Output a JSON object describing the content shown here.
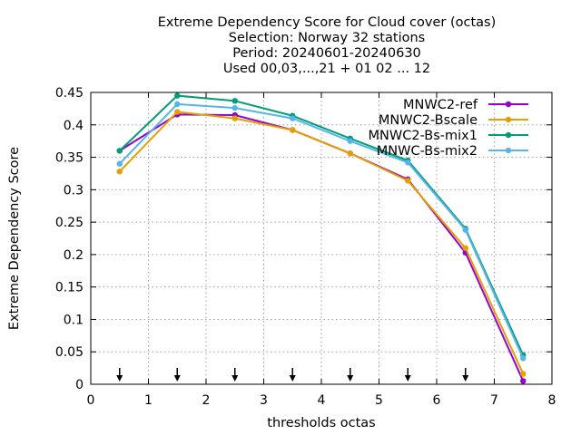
{
  "chart_data": {
    "type": "line",
    "title_lines": [
      "Extreme Dependency Score  for Cloud cover (octas)",
      "Selection: Norway     32 stations",
      "Period: 20240601-20240630",
      "Used 00,03,...,21 + 01 02 ... 12"
    ],
    "xlabel": "thresholds octas",
    "ylabel": "Extreme Dependency Score",
    "xlim": [
      0,
      8
    ],
    "ylim": [
      0,
      0.45
    ],
    "xticks": [
      0,
      1,
      2,
      3,
      4,
      5,
      6,
      7,
      8
    ],
    "xtick_labels": [
      "0",
      "1",
      "2",
      "3",
      "4",
      "5",
      "6",
      "7",
      "8"
    ],
    "yticks": [
      0,
      0.05,
      0.1,
      0.15,
      0.2,
      0.25,
      0.3,
      0.35,
      0.4,
      0.45
    ],
    "ytick_labels": [
      "0",
      "0.05",
      "0.1",
      "0.15",
      "0.2",
      "0.25",
      "0.3",
      "0.35",
      "0.4",
      "0.45"
    ],
    "grid": true,
    "legend_position": "top-right",
    "x": [
      0.5,
      1.5,
      2.5,
      3.5,
      4.5,
      5.5,
      6.5,
      7.5
    ],
    "series": [
      {
        "name": "MNWC2-ref",
        "color": "#9400d3",
        "values": [
          0.36,
          0.416,
          0.415,
          0.392,
          0.356,
          0.316,
          0.203,
          0.005
        ]
      },
      {
        "name": "MNWC2-Bscale",
        "color": "#e69f00",
        "values": [
          0.328,
          0.42,
          0.41,
          0.392,
          0.356,
          0.314,
          0.21,
          0.016
        ]
      },
      {
        "name": "MNWC2-Bs-mix1",
        "color": "#009e73",
        "values": [
          0.36,
          0.445,
          0.437,
          0.414,
          0.379,
          0.345,
          0.24,
          0.045
        ]
      },
      {
        "name": "MNWC-Bs-mix2",
        "color": "#56b4e9",
        "values": [
          0.34,
          0.432,
          0.426,
          0.41,
          0.375,
          0.342,
          0.238,
          0.04
        ]
      }
    ],
    "arrow_markers_x": [
      0.5,
      1.5,
      2.5,
      3.5,
      4.5,
      5.5,
      6.5
    ]
  }
}
